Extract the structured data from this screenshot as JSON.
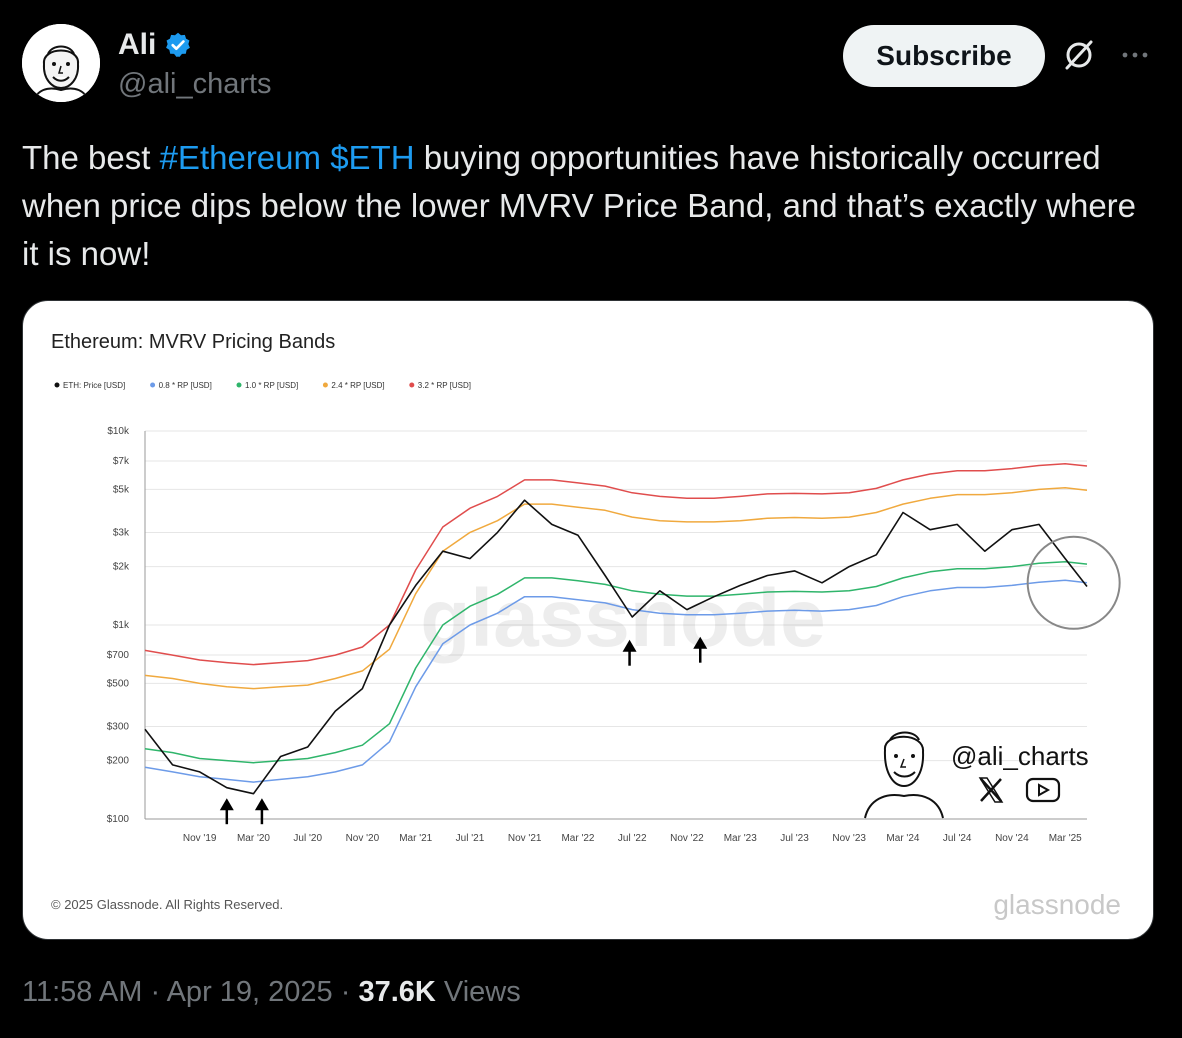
{
  "author": {
    "name": "Ali",
    "handle": "@ali_charts",
    "verified": true,
    "avatar_icon": "cartoon-avatar-icon"
  },
  "actions": {
    "subscribe_label": "Subscribe",
    "grok_icon": "grok-icon",
    "more_icon": "more-icon"
  },
  "tweet": {
    "text_before": "The best ",
    "hashtag": "#Ethereum",
    "cashtag": "$ETH",
    "text_after": " buying opportunities have historically occurred when price dips below the lower MVRV Price Band, and that’s exactly where it is now!"
  },
  "footer": {
    "time": "11:58 AM",
    "date": "Apr 19, 2025",
    "views_count": "37.6K",
    "views_label": "Views",
    "separator": "·"
  },
  "chart_data": {
    "type": "line",
    "title": "Ethereum: MVRV Pricing Bands",
    "legend": [
      "ETH: Price [USD]",
      "0.8 * RP [USD]",
      "1.0 * RP [USD]",
      "2.4 * RP [USD]",
      "3.2 * RP [USD]"
    ],
    "legend_placement": "top-left",
    "y_scale": "log",
    "ylim": [
      100,
      10000
    ],
    "y_ticks": [
      100,
      200,
      300,
      500,
      700,
      1000,
      2000,
      3000,
      5000,
      7000,
      10000
    ],
    "y_tick_labels": [
      "$100",
      "$200",
      "$300",
      "$500",
      "$700",
      "$1k",
      "$2k",
      "$3k",
      "$5k",
      "$7k",
      "$10k"
    ],
    "xlim": [
      "2019-07-01",
      "2025-04-19"
    ],
    "x_ticks": [
      "2019-11-01",
      "2020-03-01",
      "2020-07-01",
      "2020-11-01",
      "2021-03-01",
      "2021-07-01",
      "2021-11-01",
      "2022-03-01",
      "2022-07-01",
      "2022-11-01",
      "2023-03-01",
      "2023-07-01",
      "2023-11-01",
      "2024-03-01",
      "2024-07-01",
      "2024-11-01",
      "2025-03-01"
    ],
    "x_tick_labels": [
      "Nov '19",
      "Mar '20",
      "Jul '20",
      "Nov '20",
      "Mar '21",
      "Jul '21",
      "Nov '21",
      "Mar '22",
      "Jul '22",
      "Nov '22",
      "Mar '23",
      "Jul '23",
      "Nov '23",
      "Mar '24",
      "Jul '24",
      "Nov '24",
      "Mar '25"
    ],
    "grid": true,
    "x": [
      "2019-07-01",
      "2019-09-01",
      "2019-11-01",
      "2020-01-01",
      "2020-03-01",
      "2020-05-01",
      "2020-07-01",
      "2020-09-01",
      "2020-11-01",
      "2021-01-01",
      "2021-03-01",
      "2021-05-01",
      "2021-07-01",
      "2021-09-01",
      "2021-11-01",
      "2022-01-01",
      "2022-03-01",
      "2022-05-01",
      "2022-07-01",
      "2022-09-01",
      "2022-11-01",
      "2023-01-01",
      "2023-03-01",
      "2023-05-01",
      "2023-07-01",
      "2023-09-01",
      "2023-11-01",
      "2024-01-01",
      "2024-03-01",
      "2024-05-01",
      "2024-07-01",
      "2024-09-01",
      "2024-11-01",
      "2025-01-01",
      "2025-03-01",
      "2025-04-19"
    ],
    "series": [
      {
        "name": "ETH: Price [USD]",
        "color": "#111111",
        "values": [
          290,
          190,
          175,
          145,
          135,
          210,
          235,
          360,
          470,
          1000,
          1600,
          2400,
          2200,
          3000,
          4400,
          3300,
          2900,
          1800,
          1100,
          1500,
          1200,
          1400,
          1600,
          1800,
          1900,
          1650,
          2000,
          2300,
          3800,
          3100,
          3300,
          2400,
          3100,
          3300,
          2200,
          1580
        ]
      },
      {
        "name": "0.8 * RP [USD]",
        "color": "#6d9be8",
        "values": [
          185,
          175,
          165,
          160,
          155,
          160,
          165,
          175,
          190,
          250,
          480,
          800,
          1000,
          1150,
          1400,
          1400,
          1350,
          1300,
          1200,
          1150,
          1130,
          1130,
          1150,
          1180,
          1190,
          1180,
          1200,
          1260,
          1400,
          1500,
          1560,
          1560,
          1600,
          1660,
          1700,
          1650
        ]
      },
      {
        "name": "1.0 * RP [USD]",
        "color": "#2fb56b",
        "values": [
          230,
          220,
          205,
          200,
          195,
          200,
          205,
          220,
          240,
          310,
          600,
          1000,
          1250,
          1440,
          1750,
          1750,
          1690,
          1620,
          1500,
          1440,
          1410,
          1410,
          1440,
          1480,
          1490,
          1480,
          1500,
          1580,
          1750,
          1880,
          1950,
          1950,
          2000,
          2080,
          2120,
          2060
        ]
      },
      {
        "name": "2.4 * RP [USD]",
        "color": "#f0a93e",
        "values": [
          550,
          530,
          500,
          480,
          470,
          480,
          490,
          530,
          580,
          750,
          1450,
          2400,
          3000,
          3450,
          4200,
          4200,
          4050,
          3900,
          3600,
          3450,
          3400,
          3400,
          3450,
          3550,
          3580,
          3550,
          3600,
          3800,
          4200,
          4500,
          4700,
          4700,
          4800,
          5000,
          5100,
          4950
        ]
      },
      {
        "name": "3.2 * RP [USD]",
        "color": "#e04d4d",
        "values": [
          740,
          700,
          660,
          640,
          625,
          640,
          655,
          700,
          770,
          1000,
          1920,
          3200,
          4000,
          4600,
          5600,
          5600,
          5400,
          5200,
          4800,
          4600,
          4500,
          4500,
          4600,
          4740,
          4770,
          4740,
          4800,
          5060,
          5600,
          6000,
          6240,
          6240,
          6400,
          6640,
          6780,
          6600
        ]
      }
    ],
    "annotations": [
      {
        "type": "arrow-up",
        "x": "2020-01-01",
        "y": 125
      },
      {
        "type": "arrow-up",
        "x": "2020-03-20",
        "y": 125
      },
      {
        "type": "arrow-up",
        "x": "2022-06-25",
        "y": 820
      },
      {
        "type": "arrow-up",
        "x": "2022-12-01",
        "y": 850
      },
      {
        "type": "circle",
        "x": "2025-03-20",
        "y": 1650
      }
    ],
    "watermark": "glassnode",
    "copyright": "© 2025 Glassnode. All Rights Reserved.",
    "logo_text": "glassnode",
    "overlay_handle": "@ali_charts",
    "overlay_icons": [
      "x-logo-icon",
      "youtube-icon"
    ]
  }
}
